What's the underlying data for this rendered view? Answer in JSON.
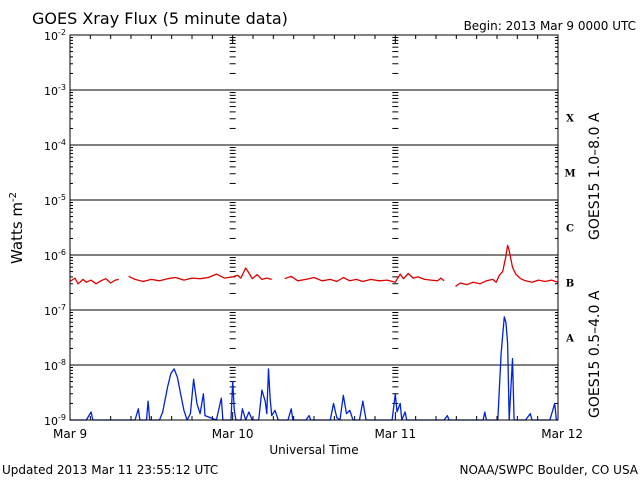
{
  "chart_data": {
    "type": "line",
    "title": "GOES Xray Flux (5 minute data)",
    "begin": "Begin:  2013 Mar 9 0000 UTC",
    "updated": "Updated 2013 Mar 11 23:55:12 UTC",
    "credit": "NOAA/SWPC Boulder, CO USA",
    "xlabel": "Universal Time",
    "ylabel": "Watts m⁻²",
    "ylabel_base": "Watts m",
    "ylabel_sup": "-2",
    "y_scale": "log",
    "ylim": [
      1e-09,
      0.01
    ],
    "xlim_days": [
      0,
      3
    ],
    "grid": "horizontal lines at each decade; dashed tick columns at day boundaries",
    "x_ticks": [
      {
        "day": 0,
        "label": "Mar 9"
      },
      {
        "day": 1,
        "label": "Mar 10"
      },
      {
        "day": 2,
        "label": "Mar 11"
      },
      {
        "day": 3,
        "label": "Mar 12"
      }
    ],
    "y_ticks": [
      {
        "exp": -9,
        "label": "10",
        "sup": "-9"
      },
      {
        "exp": -8,
        "label": "10",
        "sup": "-8"
      },
      {
        "exp": -7,
        "label": "10",
        "sup": "-7"
      },
      {
        "exp": -6,
        "label": "10",
        "sup": "-6"
      },
      {
        "exp": -5,
        "label": "10",
        "sup": "-5"
      },
      {
        "exp": -4,
        "label": "10",
        "sup": "-4"
      },
      {
        "exp": -3,
        "label": "10",
        "sup": "-3"
      },
      {
        "exp": -2,
        "label": "10",
        "sup": "-2"
      }
    ],
    "flare_classes": [
      {
        "label": "A",
        "exp": -7.5
      },
      {
        "label": "B",
        "exp": -6.5
      },
      {
        "label": "C",
        "exp": -5.5
      },
      {
        "label": "M",
        "exp": -4.5
      },
      {
        "label": "X",
        "exp": -3.5
      }
    ],
    "series": [
      {
        "name": "GOES15 1.0–8.0 A",
        "color": "#dd0000",
        "points": [
          [
            0.0,
            3.3e-07
          ],
          [
            0.03,
            3.8e-07
          ],
          [
            0.05,
            3e-07
          ],
          [
            0.08,
            3.6e-07
          ],
          [
            0.1,
            3.2e-07
          ],
          [
            0.13,
            3.5e-07
          ],
          [
            0.16,
            3e-07
          ],
          [
            0.19,
            3.4e-07
          ],
          [
            0.22,
            3.7e-07
          ],
          [
            0.25,
            3.1e-07
          ],
          [
            0.28,
            3.5e-07
          ],
          [
            0.3,
            3.6e-07
          ],
          [
            0.32,
            null
          ],
          [
            0.36,
            4.1e-07
          ],
          [
            0.4,
            3.6e-07
          ],
          [
            0.45,
            3.3e-07
          ],
          [
            0.5,
            3.6e-07
          ],
          [
            0.55,
            3.4e-07
          ],
          [
            0.6,
            3.7e-07
          ],
          [
            0.65,
            3.9e-07
          ],
          [
            0.7,
            3.5e-07
          ],
          [
            0.75,
            3.8e-07
          ],
          [
            0.8,
            3.7e-07
          ],
          [
            0.85,
            3.9e-07
          ],
          [
            0.9,
            4.5e-07
          ],
          [
            0.95,
            3.8e-07
          ],
          [
            1.0,
            4e-07
          ],
          [
            1.03,
            4.3e-07
          ],
          [
            1.05,
            3.8e-07
          ],
          [
            1.08,
            5.8e-07
          ],
          [
            1.1,
            4.7e-07
          ],
          [
            1.12,
            3.7e-07
          ],
          [
            1.15,
            4.4e-07
          ],
          [
            1.18,
            3.6e-07
          ],
          [
            1.21,
            3.8e-07
          ],
          [
            1.24,
            3.6e-07
          ],
          [
            1.26,
            null
          ],
          [
            1.32,
            3.7e-07
          ],
          [
            1.36,
            4.1e-07
          ],
          [
            1.4,
            3.4e-07
          ],
          [
            1.45,
            3.6e-07
          ],
          [
            1.5,
            3.9e-07
          ],
          [
            1.55,
            3.4e-07
          ],
          [
            1.6,
            3.6e-07
          ],
          [
            1.64,
            3.3e-07
          ],
          [
            1.68,
            3.9e-07
          ],
          [
            1.72,
            3.4e-07
          ],
          [
            1.76,
            3.6e-07
          ],
          [
            1.8,
            3.3e-07
          ],
          [
            1.85,
            3.6e-07
          ],
          [
            1.9,
            3.4e-07
          ],
          [
            1.95,
            3.5e-07
          ],
          [
            2.0,
            3.2e-07
          ],
          [
            2.03,
            4.5e-07
          ],
          [
            2.05,
            3.7e-07
          ],
          [
            2.08,
            4.6e-07
          ],
          [
            2.11,
            3.8e-07
          ],
          [
            2.14,
            4e-07
          ],
          [
            2.18,
            3.6e-07
          ],
          [
            2.22,
            3.5e-07
          ],
          [
            2.26,
            3.4e-07
          ],
          [
            2.28,
            3.8e-07
          ],
          [
            2.3,
            3.4e-07
          ],
          [
            2.33,
            null
          ],
          [
            2.37,
            2.7e-07
          ],
          [
            2.4,
            3.1e-07
          ],
          [
            2.44,
            2.9e-07
          ],
          [
            2.48,
            3.2e-07
          ],
          [
            2.52,
            3e-07
          ],
          [
            2.56,
            3.4e-07
          ],
          [
            2.6,
            3.6e-07
          ],
          [
            2.62,
            3.2e-07
          ],
          [
            2.64,
            4.3e-07
          ],
          [
            2.66,
            5e-07
          ],
          [
            2.68,
            9.5e-07
          ],
          [
            2.69,
            1.5e-06
          ],
          [
            2.7,
            1.2e-06
          ],
          [
            2.72,
            6e-07
          ],
          [
            2.74,
            4.5e-07
          ],
          [
            2.77,
            3.7e-07
          ],
          [
            2.8,
            3.4e-07
          ],
          [
            2.84,
            3.2e-07
          ],
          [
            2.88,
            3.5e-07
          ],
          [
            2.92,
            3.3e-07
          ],
          [
            2.96,
            3.5e-07
          ],
          [
            3.0,
            3.2e-07
          ]
        ]
      },
      {
        "name": "GOES15 0.5–4.0 A",
        "color": "#0022dd",
        "points": [
          [
            0.0,
            1e-09
          ],
          [
            0.1,
            1e-09
          ],
          [
            0.13,
            1.4e-09
          ],
          [
            0.14,
            1e-09
          ],
          [
            0.4,
            1e-09
          ],
          [
            0.42,
            1.6e-09
          ],
          [
            0.43,
            1e-09
          ],
          [
            0.47,
            1e-09
          ],
          [
            0.48,
            2.2e-09
          ],
          [
            0.49,
            1e-09
          ],
          [
            0.55,
            1e-09
          ],
          [
            0.57,
            1.4e-09
          ],
          [
            0.6,
            4e-09
          ],
          [
            0.62,
            7e-09
          ],
          [
            0.64,
            8.5e-09
          ],
          [
            0.66,
            6e-09
          ],
          [
            0.68,
            3e-09
          ],
          [
            0.7,
            1.5e-09
          ],
          [
            0.72,
            1e-09
          ],
          [
            0.74,
            1.3e-09
          ],
          [
            0.76,
            5.5e-09
          ],
          [
            0.78,
            2e-09
          ],
          [
            0.8,
            1.3e-09
          ],
          [
            0.82,
            3e-09
          ],
          [
            0.83,
            1.2e-09
          ],
          [
            0.9,
            1e-09
          ],
          [
            0.93,
            2.5e-09
          ],
          [
            0.94,
            1e-09
          ],
          [
            0.99,
            1e-09
          ],
          [
            1.0,
            5e-09
          ],
          [
            1.01,
            1.5e-09
          ],
          [
            1.02,
            1e-09
          ],
          [
            1.05,
            1e-09
          ],
          [
            1.06,
            1.6e-09
          ],
          [
            1.08,
            1e-09
          ],
          [
            1.1,
            1.4e-09
          ],
          [
            1.12,
            1e-09
          ],
          [
            1.16,
            1e-09
          ],
          [
            1.18,
            3.5e-09
          ],
          [
            1.2,
            2.2e-09
          ],
          [
            1.21,
            1.3e-09
          ],
          [
            1.22,
            8.5e-09
          ],
          [
            1.23,
            2.5e-09
          ],
          [
            1.24,
            1.2e-09
          ],
          [
            1.26,
            1.5e-09
          ],
          [
            1.28,
            1e-09
          ],
          [
            1.34,
            1e-09
          ],
          [
            1.36,
            1.6e-09
          ],
          [
            1.37,
            1e-09
          ],
          [
            1.45,
            1e-09
          ],
          [
            1.47,
            1.2e-09
          ],
          [
            1.48,
            1e-09
          ],
          [
            1.6,
            1e-09
          ],
          [
            1.62,
            2e-09
          ],
          [
            1.64,
            1.1e-09
          ],
          [
            1.66,
            1e-09
          ],
          [
            1.68,
            2.8e-09
          ],
          [
            1.7,
            1.3e-09
          ],
          [
            1.72,
            1.5e-09
          ],
          [
            1.74,
            1e-09
          ],
          [
            1.78,
            1e-09
          ],
          [
            1.8,
            2.2e-09
          ],
          [
            1.82,
            1e-09
          ],
          [
            1.98,
            1e-09
          ],
          [
            2.0,
            3e-09
          ],
          [
            2.01,
            1.4e-09
          ],
          [
            2.03,
            2e-09
          ],
          [
            2.04,
            1e-09
          ],
          [
            2.06,
            1.4e-09
          ],
          [
            2.07,
            1e-09
          ],
          [
            2.3,
            1e-09
          ],
          [
            2.32,
            1.2e-09
          ],
          [
            2.33,
            1e-09
          ],
          [
            2.54,
            1e-09
          ],
          [
            2.55,
            1.4e-09
          ],
          [
            2.56,
            1e-09
          ],
          [
            2.63,
            1e-09
          ],
          [
            2.65,
            1.6e-08
          ],
          [
            2.66,
            3.5e-08
          ],
          [
            2.67,
            7.5e-08
          ],
          [
            2.68,
            6e-08
          ],
          [
            2.69,
            2.5e-08
          ],
          [
            2.7,
            1e-09
          ],
          [
            2.72,
            1.3e-08
          ],
          [
            2.73,
            1e-09
          ],
          [
            2.8,
            1e-09
          ],
          [
            2.83,
            1.3e-09
          ],
          [
            2.84,
            1e-09
          ],
          [
            2.95,
            1e-09
          ],
          [
            2.98,
            2e-09
          ],
          [
            2.99,
            1e-09
          ],
          [
            3.0,
            1e-09
          ]
        ]
      }
    ]
  }
}
